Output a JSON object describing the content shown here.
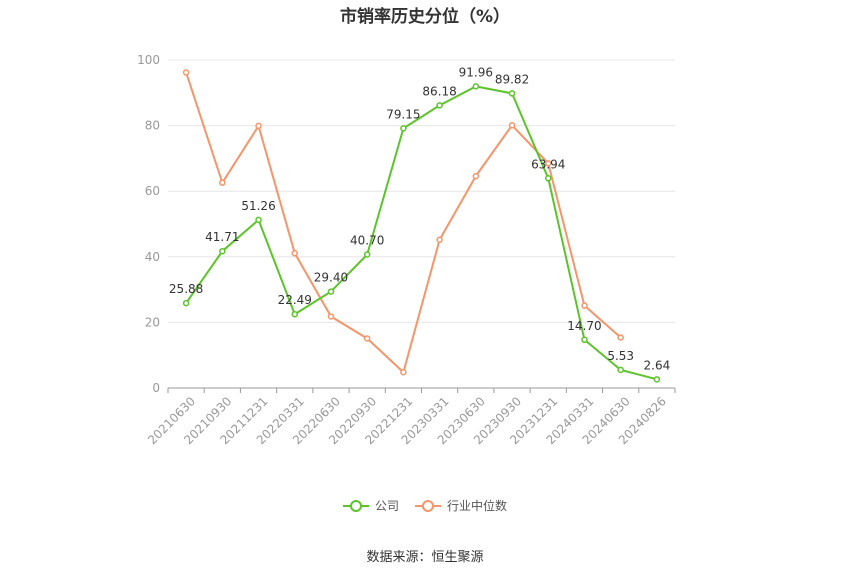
{
  "chart_data": {
    "type": "line",
    "title": "市销率历史分位（%）",
    "categories": [
      "20210630",
      "20210930",
      "20211231",
      "20220331",
      "20220630",
      "20220930",
      "20221231",
      "20230331",
      "20230630",
      "20230930",
      "20231231",
      "20240331",
      "20240630",
      "20240826"
    ],
    "ylim": [
      0,
      100
    ],
    "yticks": [
      0,
      20,
      40,
      60,
      80,
      100
    ],
    "grid": true,
    "legend_position": "bottom",
    "series": [
      {
        "name": "公司",
        "color": "#5cc42a",
        "values": [
          25.88,
          41.71,
          51.26,
          22.49,
          29.4,
          40.7,
          79.15,
          86.18,
          91.96,
          89.82,
          63.94,
          14.7,
          5.53,
          2.64
        ],
        "labels": [
          "25.88",
          "41.71",
          "51.26",
          "22.49",
          "29.40",
          "40.70",
          "79.15",
          "86.18",
          "91.96",
          "89.82",
          "63.94",
          "14.70",
          "5.53",
          "2.64"
        ]
      },
      {
        "name": "行业中位数",
        "color": "#f4956a",
        "values": [
          96.2,
          62.6,
          79.9,
          41.1,
          21.8,
          15.1,
          4.8,
          45.2,
          64.6,
          80.1,
          68.5,
          25.1,
          15.4,
          null
        ]
      }
    ]
  },
  "legend": {
    "company": "公司",
    "industry": "行业中位数"
  },
  "source": "数据来源：恒生聚源"
}
